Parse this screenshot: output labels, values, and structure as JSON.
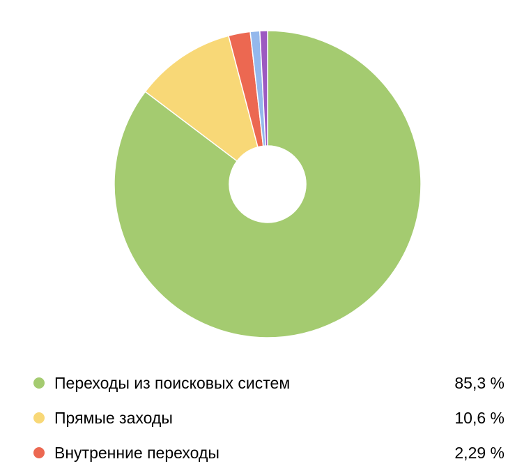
{
  "chart_data": {
    "type": "pie",
    "donut": true,
    "legend": "bottom",
    "slices": [
      {
        "label": "Переходы из поисковых систем",
        "value": 85.3,
        "display": "85,3 %",
        "color": "#a4cb70",
        "in_legend": true
      },
      {
        "label": "Прямые заходы",
        "value": 10.6,
        "display": "10,6 %",
        "color": "#f8d877",
        "in_legend": true
      },
      {
        "label": "Внутренние переходы",
        "value": 2.29,
        "display": "2,29 %",
        "color": "#ec6851",
        "in_legend": true
      },
      {
        "label": "",
        "value": 1.0,
        "display": "",
        "color": "#94b8ec",
        "in_legend": false
      },
      {
        "label": "",
        "value": 0.81,
        "display": "",
        "color": "#9c5ac1",
        "in_legend": false
      }
    ]
  }
}
